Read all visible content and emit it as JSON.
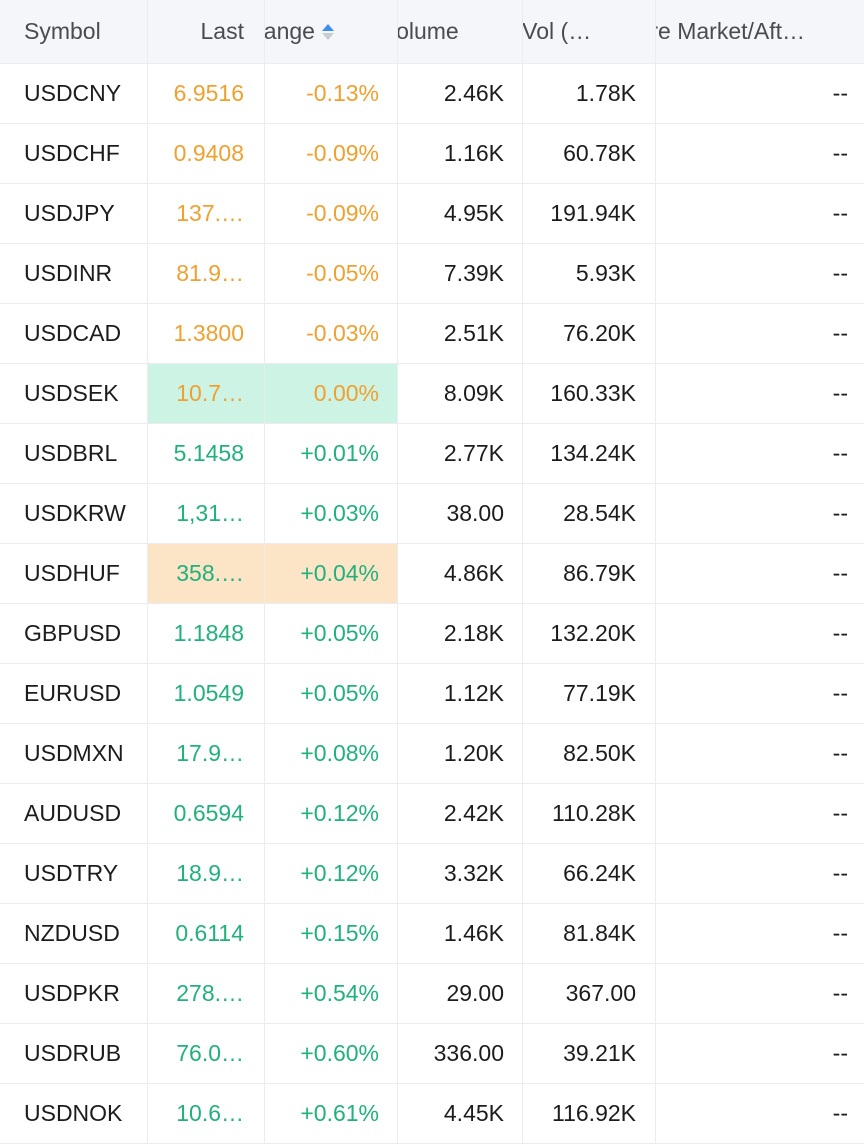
{
  "colors": {
    "negative": "#f0a030",
    "positive": "#22b07d",
    "flash_up": "#cdf3e4",
    "flash_down": "#fbe5c6",
    "header_bg": "#f5f6f9",
    "sort_active": "#3d8df5"
  },
  "columns": {
    "symbol": "Symbol",
    "last": "Last",
    "change": "hange",
    "volume": "Volume",
    "avg_vol": "g Vol (…",
    "pre_market": "'re Market/Aft…"
  },
  "sort_icon": "sort-ascending-icon",
  "rows": [
    {
      "symbol": "USDCNY",
      "last": "6.9516",
      "change": "-0.13%",
      "volume": "2.46K",
      "avg_vol": "1.78K",
      "pre_market": "--",
      "trend": "neg",
      "flash": ""
    },
    {
      "symbol": "USDCHF",
      "last": "0.9408",
      "change": "-0.09%",
      "volume": "1.16K",
      "avg_vol": "60.78K",
      "pre_market": "--",
      "trend": "neg",
      "flash": ""
    },
    {
      "symbol": "USDJPY",
      "last": "137.…",
      "change": "-0.09%",
      "volume": "4.95K",
      "avg_vol": "191.94K",
      "pre_market": "--",
      "trend": "neg",
      "flash": ""
    },
    {
      "symbol": "USDINR",
      "last": "81.9…",
      "change": "-0.05%",
      "volume": "7.39K",
      "avg_vol": "5.93K",
      "pre_market": "--",
      "trend": "neg",
      "flash": ""
    },
    {
      "symbol": "USDCAD",
      "last": "1.3800",
      "change": "-0.03%",
      "volume": "2.51K",
      "avg_vol": "76.20K",
      "pre_market": "--",
      "trend": "neg",
      "flash": ""
    },
    {
      "symbol": "USDSEK",
      "last": "10.7…",
      "change": "0.00%",
      "volume": "8.09K",
      "avg_vol": "160.33K",
      "pre_market": "--",
      "trend": "zero",
      "flash": "green"
    },
    {
      "symbol": "USDBRL",
      "last": "5.1458",
      "change": "+0.01%",
      "volume": "2.77K",
      "avg_vol": "134.24K",
      "pre_market": "--",
      "trend": "pos",
      "flash": ""
    },
    {
      "symbol": "USDKRW",
      "last": "1,31…",
      "change": "+0.03%",
      "volume": "38.00",
      "avg_vol": "28.54K",
      "pre_market": "--",
      "trend": "pos",
      "flash": ""
    },
    {
      "symbol": "USDHUF",
      "last": "358.…",
      "change": "+0.04%",
      "volume": "4.86K",
      "avg_vol": "86.79K",
      "pre_market": "--",
      "trend": "pos",
      "flash": "orange"
    },
    {
      "symbol": "GBPUSD",
      "last": "1.1848",
      "change": "+0.05%",
      "volume": "2.18K",
      "avg_vol": "132.20K",
      "pre_market": "--",
      "trend": "pos",
      "flash": ""
    },
    {
      "symbol": "EURUSD",
      "last": "1.0549",
      "change": "+0.05%",
      "volume": "1.12K",
      "avg_vol": "77.19K",
      "pre_market": "--",
      "trend": "pos",
      "flash": ""
    },
    {
      "symbol": "USDMXN",
      "last": "17.9…",
      "change": "+0.08%",
      "volume": "1.20K",
      "avg_vol": "82.50K",
      "pre_market": "--",
      "trend": "pos",
      "flash": ""
    },
    {
      "symbol": "AUDUSD",
      "last": "0.6594",
      "change": "+0.12%",
      "volume": "2.42K",
      "avg_vol": "110.28K",
      "pre_market": "--",
      "trend": "pos",
      "flash": ""
    },
    {
      "symbol": "USDTRY",
      "last": "18.9…",
      "change": "+0.12%",
      "volume": "3.32K",
      "avg_vol": "66.24K",
      "pre_market": "--",
      "trend": "pos",
      "flash": ""
    },
    {
      "symbol": "NZDUSD",
      "last": "0.6114",
      "change": "+0.15%",
      "volume": "1.46K",
      "avg_vol": "81.84K",
      "pre_market": "--",
      "trend": "pos",
      "flash": ""
    },
    {
      "symbol": "USDPKR",
      "last": "278.…",
      "change": "+0.54%",
      "volume": "29.00",
      "avg_vol": "367.00",
      "pre_market": "--",
      "trend": "pos",
      "flash": ""
    },
    {
      "symbol": "USDRUB",
      "last": "76.0…",
      "change": "+0.60%",
      "volume": "336.00",
      "avg_vol": "39.21K",
      "pre_market": "--",
      "trend": "pos",
      "flash": ""
    },
    {
      "symbol": "USDNOK",
      "last": "10.6…",
      "change": "+0.61%",
      "volume": "4.45K",
      "avg_vol": "116.92K",
      "pre_market": "--",
      "trend": "pos",
      "flash": ""
    }
  ]
}
